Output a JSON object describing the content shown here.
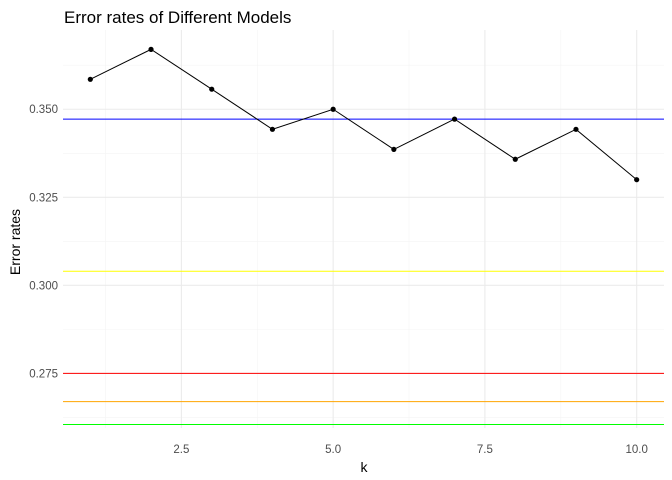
{
  "chart_data": {
    "type": "line",
    "title": "Error rates of Different Models",
    "xlabel": "k",
    "ylabel": "Error rates",
    "xlim": [
      0.55,
      10.45
    ],
    "ylim": [
      0.2595,
      0.3725
    ],
    "x_ticks": [
      2.5,
      5.0,
      7.5,
      10.0
    ],
    "x_tick_labels": [
      "2.5",
      "5.0",
      "7.5",
      "10.0"
    ],
    "y_ticks": [
      0.275,
      0.3,
      0.325,
      0.35
    ],
    "y_tick_labels": [
      "0.275",
      "0.300",
      "0.325",
      "0.350"
    ],
    "grid": true,
    "series": [
      {
        "color": "#000000",
        "x": [
          1,
          2,
          3,
          4,
          5,
          6,
          7,
          8,
          9,
          10
        ],
        "y": [
          0.3585,
          0.367,
          0.3557,
          0.3443,
          0.35,
          0.3386,
          0.3472,
          0.3358,
          0.3443,
          0.33
        ]
      }
    ],
    "reference_lines": [
      {
        "y": 0.3472,
        "color": "#0000ff"
      },
      {
        "y": 0.304,
        "color": "#ffff00"
      },
      {
        "y": 0.275,
        "color": "#ff0000"
      },
      {
        "y": 0.267,
        "color": "#ffa500"
      },
      {
        "y": 0.2605,
        "color": "#00ff00"
      }
    ]
  }
}
